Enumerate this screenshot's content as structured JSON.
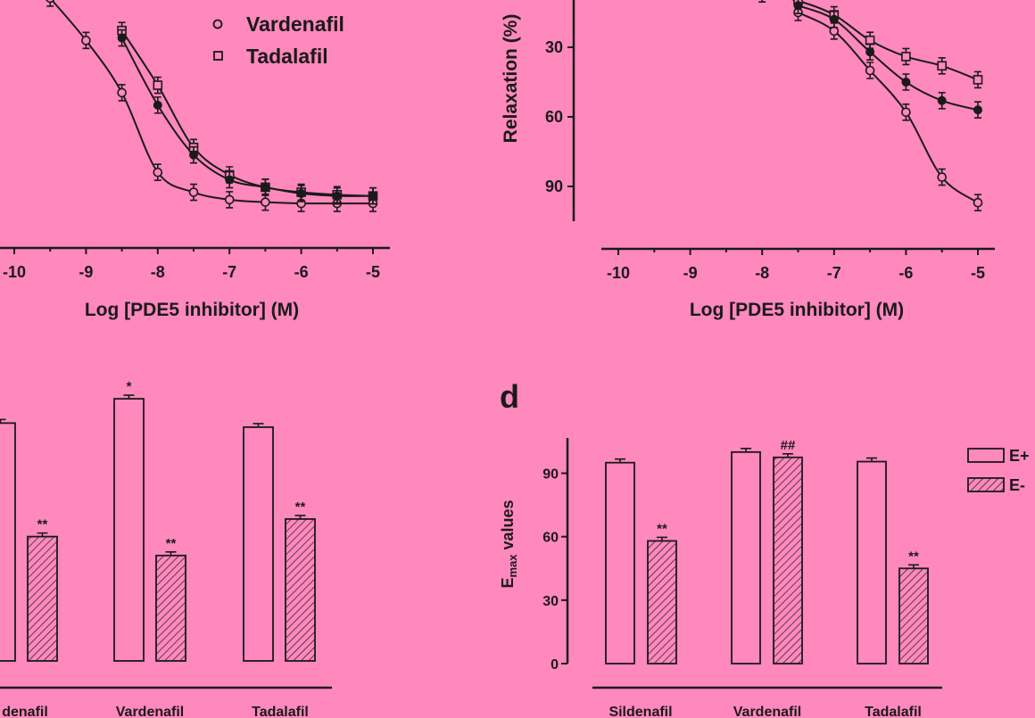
{
  "chart_data": [
    {
      "type": "scatter",
      "panel_label": "",
      "xlabel": "Log [PDE5 inhibitor] (M)",
      "ylabel": "",
      "xlim": [
        -10,
        -5
      ],
      "ylim": [
        0,
        100
      ],
      "x_ticks": [
        "-10",
        "-9",
        "-8",
        "-7",
        "-6",
        "-5"
      ],
      "y_ticks": [],
      "legend": [
        "Vardenafil",
        "Tadalafil"
      ],
      "series": [
        {
          "name": "Vardenafil",
          "marker": "open-circle",
          "x": [
            -9.5,
            -9,
            -8.5,
            -8,
            -7.5,
            -7,
            -6.5,
            -6,
            -5.5,
            -5
          ],
          "y": [
            10,
            27,
            48,
            80,
            88,
            91,
            92,
            92.5,
            92.5,
            92.5
          ]
        },
        {
          "name": "Tadalafil",
          "marker": "open-square",
          "x": [
            -8.5,
            -8,
            -7.5,
            -7,
            -6.5,
            -6,
            -5.5,
            -5
          ],
          "y": [
            23,
            45,
            70,
            81,
            86,
            88,
            89,
            89.5
          ]
        },
        {
          "name": "",
          "marker": "filled-circle",
          "x": [
            -8.5,
            -8,
            -7.5,
            -7,
            -6.5,
            -6,
            -5.5,
            -5
          ],
          "y": [
            26,
            53,
            73,
            83,
            86,
            88.5,
            89.5,
            89.5
          ]
        }
      ]
    },
    {
      "type": "scatter",
      "panel_label": "",
      "xlabel": "Log [PDE5 inhibitor] (M)",
      "ylabel": "Relaxation (%)",
      "xlim": [
        -10,
        -5
      ],
      "ylim": [
        0,
        105
      ],
      "x_ticks": [
        "-10",
        "-9",
        "-8",
        "-7",
        "-6",
        "-5"
      ],
      "y_ticks": [
        "30",
        "60",
        "90"
      ],
      "legend": [],
      "series": [
        {
          "name": "",
          "marker": "open-circle",
          "x": [
            -7.5,
            -7,
            -6.5,
            -6,
            -5.5,
            -5
          ],
          "y": [
            15,
            23,
            40,
            58,
            86,
            97
          ]
        },
        {
          "name": "",
          "marker": "open-square",
          "x": [
            -8,
            -7.5,
            -7,
            -6.5,
            -6,
            -5.5,
            -5
          ],
          "y": [
            7,
            10,
            16,
            27,
            34,
            38,
            44
          ]
        },
        {
          "name": "",
          "marker": "filled-circle",
          "x": [
            -7.5,
            -7,
            -6.5,
            -6,
            -5.5,
            -5
          ],
          "y": [
            12,
            18,
            32,
            45,
            53,
            57
          ]
        }
      ]
    },
    {
      "type": "bar",
      "panel_label": "",
      "ylabel": "",
      "categories": [
        "denafil",
        "Vardenafil",
        "Tadalafil"
      ],
      "ylim": [
        0,
        100
      ],
      "series": [
        {
          "name": "E+",
          "values": [
            88,
            97,
            86.5
          ],
          "annotations": [
            "",
            "*",
            ""
          ]
        },
        {
          "name": "E-",
          "values": [
            46,
            39,
            52.5
          ],
          "annotations": [
            "**",
            "**",
            "**"
          ]
        }
      ]
    },
    {
      "type": "bar",
      "panel_label": "d",
      "ylabel": "E",
      "ylabel_sub": "max",
      "ylabel_rest": " values",
      "categories": [
        "Sildenafil",
        "Vardenafil",
        "Tadalafil"
      ],
      "ylim": [
        0,
        105
      ],
      "y_ticks": [
        "0",
        "30",
        "60",
        "90"
      ],
      "legend": [
        "E+",
        "E-"
      ],
      "series": [
        {
          "name": "E+",
          "values": [
            95,
            100,
            95.5
          ],
          "annotations": [
            "",
            "",
            ""
          ]
        },
        {
          "name": "E-",
          "values": [
            58,
            97.5,
            45
          ],
          "annotations": [
            "**",
            "##",
            "**"
          ]
        }
      ]
    }
  ]
}
